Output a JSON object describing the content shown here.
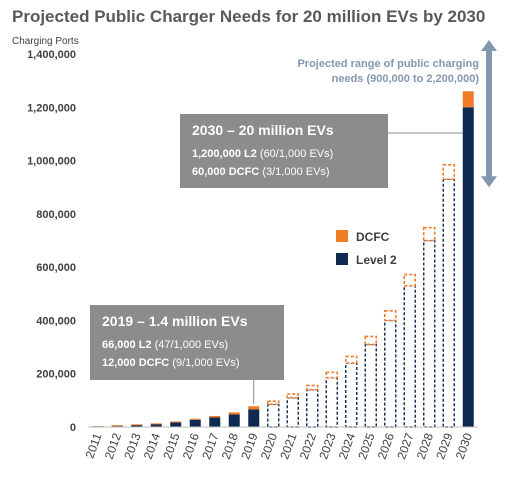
{
  "chart_data": {
    "type": "bar",
    "title": "Projected Public Charger Needs for 20 million EVs by 2030",
    "ylabel": "Charging Ports",
    "ylim": [
      0,
      1400000
    ],
    "yticks": [
      "0",
      "200,000",
      "400,000",
      "600,000",
      "800,000",
      "1,000,000",
      "1,200,000",
      "1,400,000"
    ],
    "ytick_values": [
      0,
      200000,
      400000,
      600000,
      800000,
      1000000,
      1200000,
      1400000
    ],
    "categories": [
      "2011",
      "2012",
      "2013",
      "2014",
      "2015",
      "2016",
      "2017",
      "2018",
      "2019",
      "2020",
      "2021",
      "2022",
      "2023",
      "2024",
      "2025",
      "2026",
      "2027",
      "2028",
      "2029",
      "2030"
    ],
    "stacked": true,
    "series": [
      {
        "name": "Level 2",
        "color": "#0e2a50",
        "values": [
          3000,
          6000,
          9000,
          12000,
          18000,
          27000,
          36000,
          47000,
          66000,
          85000,
          110000,
          140000,
          185000,
          240000,
          310000,
          400000,
          530000,
          700000,
          930000,
          1200000
        ]
      },
      {
        "name": "DCFC",
        "color": "#f07c28",
        "values": [
          300,
          600,
          1000,
          1500,
          2500,
          4000,
          5500,
          8000,
          12000,
          12000,
          14000,
          16000,
          20000,
          25000,
          30000,
          36000,
          42000,
          48000,
          54000,
          60000
        ]
      }
    ],
    "projected_from_index": 9,
    "grid": false,
    "legend": {
      "placement": "center-right"
    },
    "range_note": [
      "Projected range of public charging",
      "needs (900,000 to 2,200,000)"
    ],
    "range_bounds": [
      900000,
      2200000
    ],
    "callouts": [
      {
        "category": "2019",
        "title": "2019 – 1.4 million EVs",
        "lines": [
          {
            "strong": "66,000 L2",
            "rest": " (47/1,000 EVs)"
          },
          {
            "strong": "12,000 DCFC",
            "rest": " (9/1,000 EVs)"
          }
        ]
      },
      {
        "category": "2030",
        "title": "2030 – 20 million EVs",
        "lines": [
          {
            "strong": "1,200,000 L2",
            "rest": " (60/1,000 EVs)"
          },
          {
            "strong": "60,000 DCFC",
            "rest": " (3/1,000 EVs)"
          }
        ]
      }
    ],
    "colors": {
      "level2": "#0e2a50",
      "dcfc": "#f07c28",
      "callout_bg": "#8c8c8c",
      "range_arrow": "#8497b0"
    }
  }
}
